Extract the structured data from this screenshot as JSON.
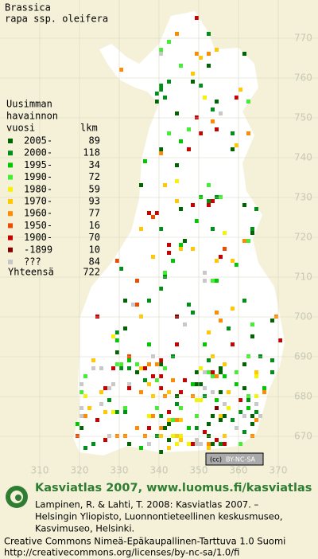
{
  "title": [
    "Brassica",
    "rapa ssp. oleifera"
  ],
  "legend": {
    "heading": [
      "Uusimman",
      "havainnon",
      "vuosi"
    ],
    "count_heading": "lkm",
    "rows": [
      {
        "label": "2005-",
        "count": 89,
        "color": "#006400"
      },
      {
        "label": "2000-",
        "count": 118,
        "color": "#00901a"
      },
      {
        "label": "1995-",
        "count": 34,
        "color": "#00c800"
      },
      {
        "label": "1990-",
        "count": 72,
        "color": "#44ee33"
      },
      {
        "label": "1980-",
        "count": 59,
        "color": "#f4f400"
      },
      {
        "label": "1970-",
        "count": 93,
        "color": "#ffc800"
      },
      {
        "label": "1960-",
        "count": 77,
        "color": "#ff8c00"
      },
      {
        "label": "1950-",
        "count": 16,
        "color": "#ee4a00"
      },
      {
        "label": "1900-",
        "count": 70,
        "color": "#c80000"
      },
      {
        "label": "-1899",
        "count": 10,
        "color": "#840000"
      },
      {
        "label": "???",
        "count": 84,
        "color": "#c8c8c8"
      }
    ],
    "total_label": "Yhteensä",
    "total": 722
  },
  "map": {
    "y_labels": [
      770,
      760,
      750,
      740,
      730,
      720,
      710,
      700,
      690,
      680,
      670
    ],
    "x_labels": [
      310,
      320,
      330,
      340,
      350,
      360,
      370
    ]
  },
  "license_badge": "BY-NC-SA",
  "footer": {
    "site": "Kasviatlas 2007, www.luomus.fi/kasviatlas",
    "citation": [
      "Lampinen, R. & Lahti, T. 2008: Kasviatlas 2007. –",
      "Helsingin Yliopisto, Luonnontieteellinen keskusmuseo,",
      "Kasvimuseo, Helsinki."
    ],
    "license": [
      "Creative Commons Nimeä-Epäkaupallinen-Tarttuva 1.0 Suomi",
      "http://creativecommons.org/licenses/by-nc-sa/1.0/fi"
    ]
  }
}
